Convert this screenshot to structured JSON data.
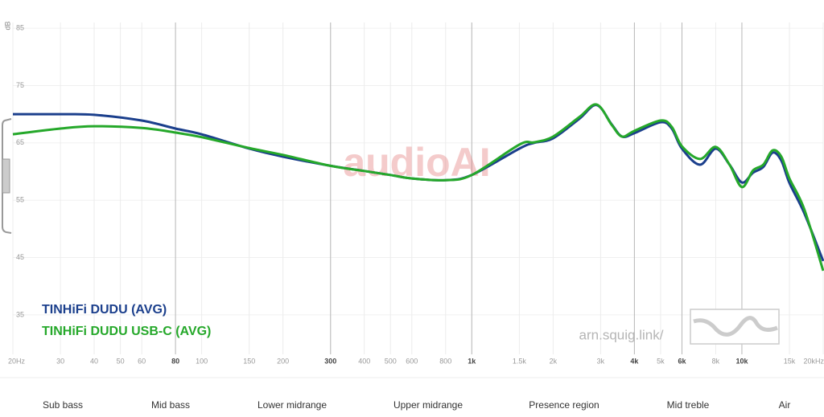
{
  "chart_data": {
    "type": "line",
    "y_label": "dB",
    "watermark": "audioAI",
    "site": "arn.squig.link/",
    "xscale": "log",
    "xlim": [
      20,
      20000
    ],
    "ylim": [
      27,
      86
    ],
    "yticks": [
      35,
      45,
      55,
      65,
      75,
      85
    ],
    "xticks": [
      {
        "value": 20,
        "label": "20Hz"
      },
      30,
      40,
      50,
      60,
      80,
      100,
      150,
      200,
      300,
      400,
      500,
      600,
      800,
      {
        "value": 1000,
        "label": "1k"
      },
      {
        "value": 1500,
        "label": "1.5k"
      },
      {
        "value": 2000,
        "label": "2k"
      },
      {
        "value": 3000,
        "label": "3k"
      },
      {
        "value": 4000,
        "label": "4k"
      },
      {
        "value": 5000,
        "label": "5k"
      },
      {
        "value": 6000,
        "label": "6k"
      },
      {
        "value": 8000,
        "label": "8k"
      },
      {
        "value": 10000,
        "label": "10k"
      },
      {
        "value": 15000,
        "label": "15k"
      },
      {
        "value": 20000,
        "label": "20kHz"
      }
    ],
    "region_edges": [
      80,
      300,
      1000,
      4000,
      6000,
      10000
    ],
    "regions": [
      "Sub bass",
      "Mid bass",
      "Lower midrange",
      "Upper midrange",
      "Presence region",
      "Mid treble",
      "Air"
    ],
    "grid": true,
    "x": [
      20,
      30,
      40,
      60,
      80,
      100,
      150,
      200,
      300,
      400,
      500,
      600,
      800,
      1000,
      1500,
      1700,
      2000,
      2500,
      2900,
      3300,
      3600,
      4000,
      5000,
      5500,
      6000,
      7000,
      8000,
      9000,
      10000,
      11000,
      12000,
      13000,
      14000,
      15000,
      17000,
      20000
    ],
    "series": [
      {
        "name": "TINHiFi DUDU (AVG)",
        "color": "#1b3f8c",
        "values": [
          70.0,
          70.0,
          69.9,
          68.9,
          67.5,
          66.5,
          64.0,
          62.6,
          61.0,
          60.1,
          59.4,
          58.8,
          58.5,
          59.4,
          64.0,
          65.0,
          65.8,
          69.2,
          71.6,
          68.2,
          66.1,
          66.7,
          68.6,
          67.5,
          64.0,
          61.2,
          64.0,
          61.2,
          58.1,
          59.8,
          60.8,
          63.3,
          61.9,
          58.0,
          52.8,
          44.4
        ]
      },
      {
        "name": "TINHiFi DUDU USB-C (AVG)",
        "color": "#25a82a",
        "values": [
          66.5,
          67.5,
          67.9,
          67.6,
          66.8,
          66.0,
          64.1,
          62.9,
          61.0,
          60.1,
          59.4,
          58.8,
          58.5,
          59.4,
          64.7,
          65.1,
          66.1,
          69.5,
          71.7,
          68.1,
          66.1,
          67.1,
          68.9,
          67.8,
          64.4,
          62.2,
          64.3,
          61.2,
          57.3,
          60.2,
          61.2,
          63.7,
          62.6,
          58.8,
          53.5,
          42.7
        ]
      }
    ]
  }
}
